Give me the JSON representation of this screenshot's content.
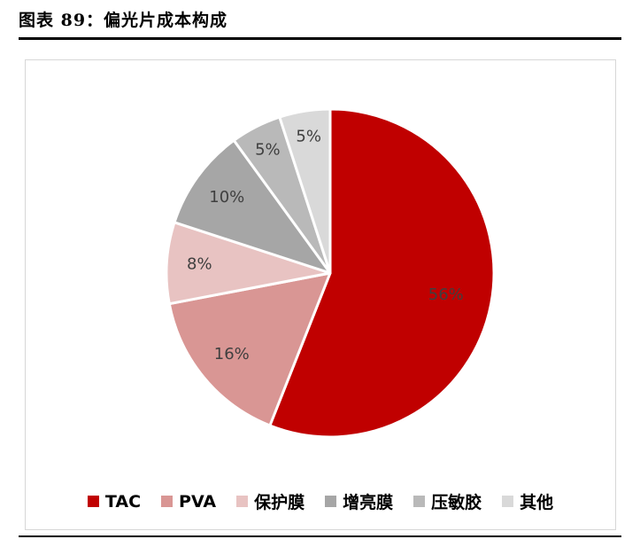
{
  "title": "图表 89：偏光片成本构成",
  "chart_data": {
    "type": "pie",
    "title": "偏光片成本构成",
    "categories": [
      "TAC",
      "PVA",
      "保护膜",
      "增亮膜",
      "压敏胶",
      "其他"
    ],
    "values": [
      56,
      16,
      8,
      10,
      5,
      5
    ],
    "labels": [
      "56%",
      "16%",
      "8%",
      "10%",
      "5%",
      "5%"
    ],
    "colors": [
      "#c00000",
      "#d99694",
      "#e8c3c2",
      "#a6a6a6",
      "#b9b9b9",
      "#d9d9d9"
    ],
    "start_angle_deg": 0,
    "direction": "clockwise",
    "legend_position": "bottom",
    "slice_border_color": "#ffffff",
    "label_color": "#3f3f3f"
  }
}
